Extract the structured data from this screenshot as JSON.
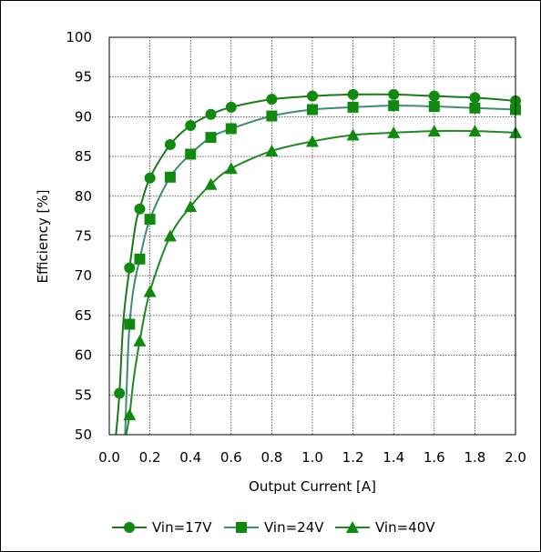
{
  "colors": {
    "Vin=17V": "#1a7a1a",
    "Vin=24V": "#3e8b76",
    "Vin=40V": "#1f8a1f",
    "marker": "#0f8a0f"
  },
  "chart_data": {
    "type": "line",
    "xlabel": "Output Current [A]",
    "ylabel": "Efficiency [%]",
    "xlim": [
      0.0,
      2.0
    ],
    "ylim": [
      50,
      100
    ],
    "x_ticks": [
      "0.0",
      "0.2",
      "0.4",
      "0.6",
      "0.8",
      "1.0",
      "1.2",
      "1.4",
      "1.6",
      "1.8",
      "2.0"
    ],
    "y_ticks": [
      "50",
      "55",
      "60",
      "65",
      "70",
      "75",
      "80",
      "85",
      "90",
      "95",
      "100"
    ],
    "grid": true,
    "legend_position": "bottom",
    "series": [
      {
        "name": "Vin=17V",
        "marker": "circle",
        "x": [
          0.05,
          0.1,
          0.15,
          0.2,
          0.3,
          0.4,
          0.5,
          0.6,
          0.8,
          1.0,
          1.2,
          1.4,
          1.6,
          1.8,
          2.0
        ],
        "y": [
          55.2,
          71.0,
          78.4,
          82.3,
          86.5,
          88.9,
          90.3,
          91.2,
          92.2,
          92.6,
          92.8,
          92.8,
          92.6,
          92.4,
          92.0
        ]
      },
      {
        "name": "Vin=24V",
        "marker": "square",
        "x": [
          0.1,
          0.15,
          0.2,
          0.3,
          0.4,
          0.5,
          0.6,
          0.8,
          1.0,
          1.2,
          1.4,
          1.6,
          1.8,
          2.0
        ],
        "y": [
          63.9,
          72.1,
          77.1,
          82.4,
          85.3,
          87.4,
          88.5,
          90.1,
          90.9,
          91.2,
          91.4,
          91.3,
          91.1,
          90.9
        ]
      },
      {
        "name": "Vin=40V",
        "marker": "triangle",
        "x": [
          0.1,
          0.15,
          0.2,
          0.3,
          0.4,
          0.5,
          0.6,
          0.8,
          1.0,
          1.2,
          1.4,
          1.6,
          1.8,
          2.0
        ],
        "y": [
          52.5,
          61.8,
          68.0,
          75.0,
          78.7,
          81.5,
          83.5,
          85.7,
          86.9,
          87.7,
          88.0,
          88.2,
          88.2,
          88.0
        ]
      }
    ],
    "curves": [
      {
        "series": "Vin=17V",
        "x": [
          0.033,
          0.05,
          0.07,
          0.1,
          0.13,
          0.15,
          0.2,
          0.3,
          0.4,
          0.5,
          0.6,
          0.8,
          1.0,
          1.2,
          1.4,
          1.6,
          1.8,
          2.0
        ],
        "y": [
          50,
          55.2,
          64.5,
          71.0,
          76.5,
          78.4,
          82.3,
          86.5,
          88.9,
          90.3,
          91.2,
          92.2,
          92.6,
          92.8,
          92.8,
          92.6,
          92.4,
          92.0
        ]
      },
      {
        "series": "Vin=24V",
        "x": [
          0.078,
          0.09,
          0.1,
          0.12,
          0.15,
          0.2,
          0.3,
          0.4,
          0.5,
          0.6,
          0.8,
          1.0,
          1.2,
          1.4,
          1.6,
          1.8,
          2.0
        ],
        "y": [
          50,
          59.0,
          63.9,
          68.5,
          72.1,
          77.1,
          82.4,
          85.3,
          87.4,
          88.5,
          90.1,
          90.9,
          91.2,
          91.4,
          91.3,
          91.1,
          90.9
        ]
      },
      {
        "series": "Vin=40V",
        "x": [
          0.083,
          0.1,
          0.12,
          0.15,
          0.2,
          0.3,
          0.4,
          0.5,
          0.6,
          0.8,
          1.0,
          1.2,
          1.4,
          1.6,
          1.8,
          2.0
        ],
        "y": [
          50,
          52.5,
          57.0,
          61.8,
          68.0,
          75.0,
          78.7,
          81.5,
          83.5,
          85.7,
          86.9,
          87.7,
          88.0,
          88.2,
          88.2,
          88.0
        ]
      }
    ]
  }
}
